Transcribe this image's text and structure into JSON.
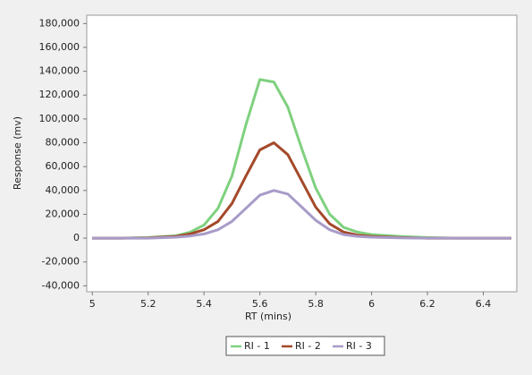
{
  "chart_data": {
    "type": "line",
    "y_label": "Response (mv)",
    "x_label": "RT (mins)",
    "x": [
      5.0,
      5.1,
      5.2,
      5.3,
      5.35,
      5.4,
      5.45,
      5.5,
      5.55,
      5.6,
      5.65,
      5.7,
      5.75,
      5.8,
      5.85,
      5.9,
      5.95,
      6.0,
      6.1,
      6.2,
      6.3,
      6.4,
      6.5
    ],
    "series": [
      {
        "name": "RI - 1",
        "color": "#7fd17f",
        "values": [
          0,
          0,
          500,
          2000,
          5000,
          11000,
          25000,
          52000,
          95000,
          133000,
          131000,
          110000,
          75000,
          42000,
          20000,
          9000,
          5000,
          3000,
          1500,
          500,
          0,
          0,
          0
        ]
      },
      {
        "name": "RI - 2",
        "color": "#a4492a",
        "values": [
          0,
          0,
          200,
          1500,
          3500,
          7000,
          14000,
          29000,
          52000,
          74000,
          80000,
          70000,
          48000,
          26000,
          12000,
          5000,
          2500,
          1500,
          500,
          0,
          0,
          0,
          0
        ]
      },
      {
        "name": "RI - 3",
        "color": "#a99bc8",
        "values": [
          0,
          0,
          0,
          800,
          1800,
          3500,
          7000,
          14000,
          25000,
          36000,
          40000,
          37000,
          26000,
          15000,
          7000,
          3000,
          1500,
          800,
          300,
          0,
          0,
          0,
          0
        ]
      }
    ],
    "xlim": [
      4.98,
      6.52
    ],
    "xticks": [
      5,
      5.2,
      5.4,
      5.6,
      5.8,
      6,
      6.2,
      6.4
    ],
    "ylim": [
      -45000,
      187000
    ],
    "yticks": [
      {
        "value": -40000,
        "label": "-40,000"
      },
      {
        "value": -20000,
        "label": "-20,000"
      },
      0,
      {
        "value": 20000,
        "label": "20,000"
      },
      {
        "value": 40000,
        "label": "40,000"
      },
      {
        "value": 60000,
        "label": "60,000"
      },
      {
        "value": 80000,
        "label": "80,000"
      },
      {
        "value": 100000,
        "label": "100,000"
      },
      {
        "value": 120000,
        "label": "120,000"
      },
      {
        "value": 140000,
        "label": "140,000"
      },
      {
        "value": 160000,
        "label": "160,000"
      },
      {
        "value": 180000,
        "label": "180,000"
      }
    ],
    "grid": false,
    "legend": "bottom"
  }
}
